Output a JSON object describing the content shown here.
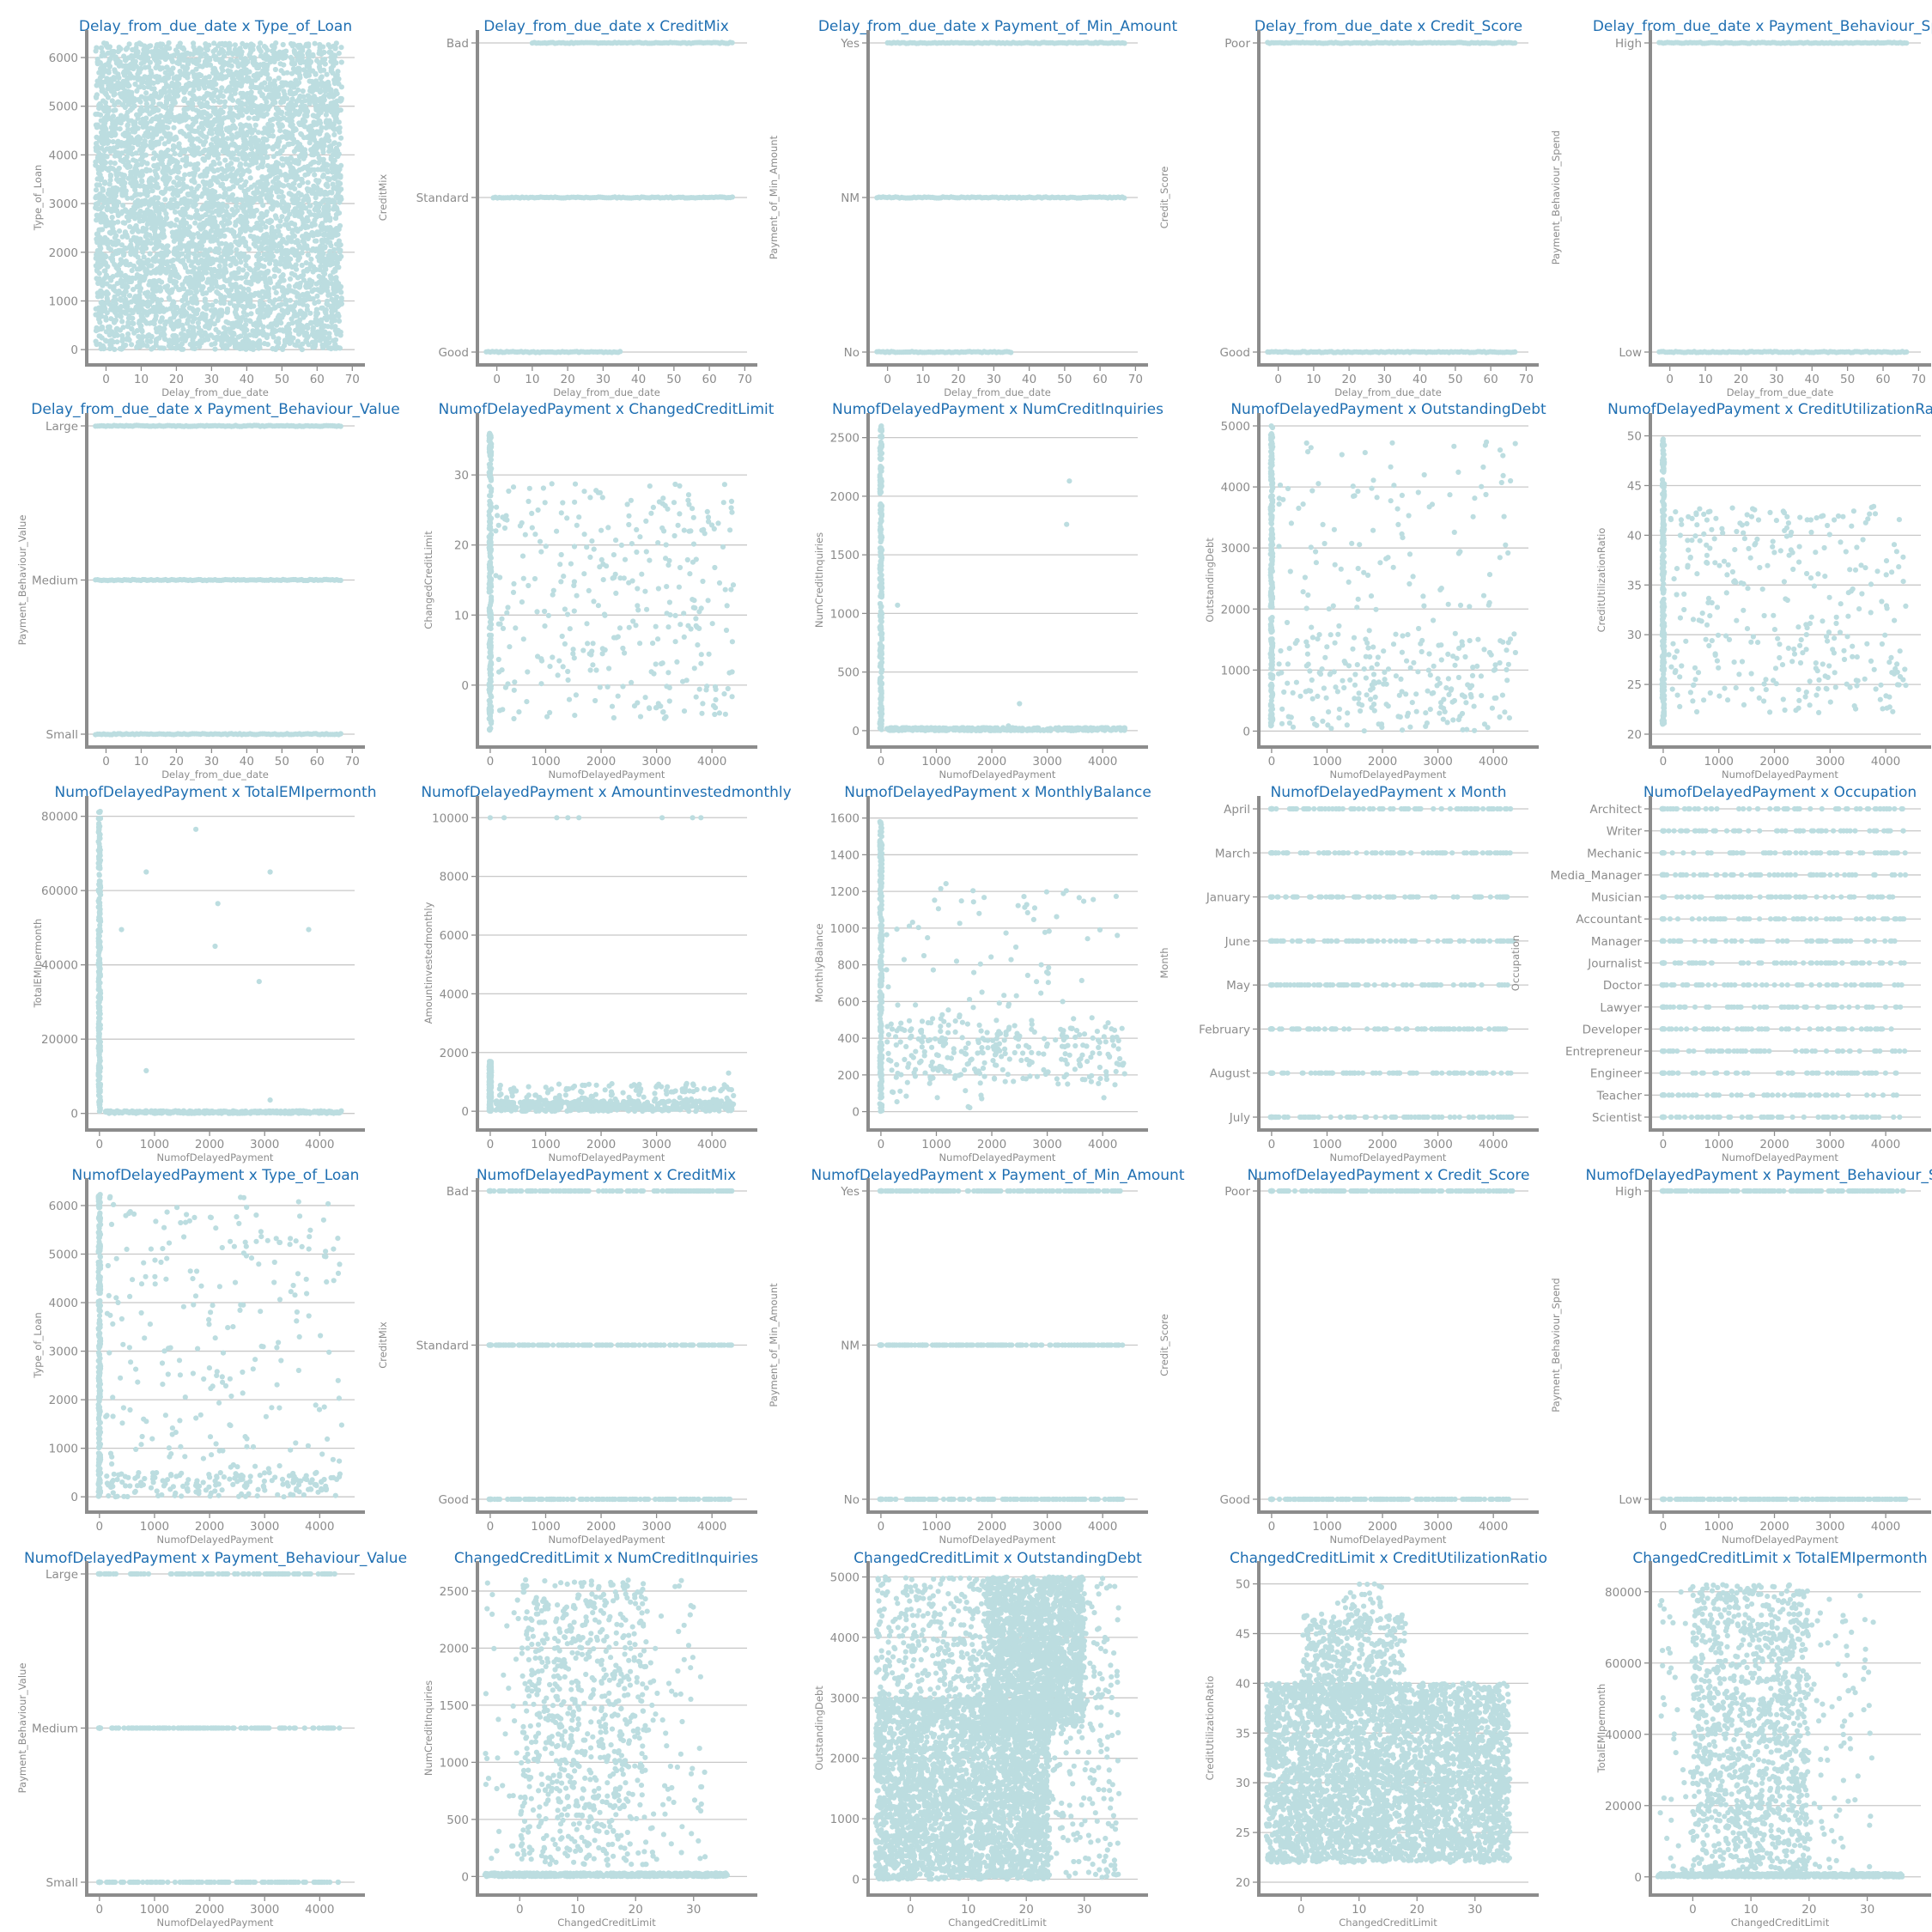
{
  "style": {
    "point_color": "#bcdde0",
    "title_color": "#1f6fb2",
    "axis_color": "#8c8c8c",
    "grid_color": "#c8c8c8"
  },
  "chart_data": [
    {
      "type": "scatter",
      "title": "Delay_from_due_date x Type_of_Loan",
      "xlabel": "Delay_from_due_date",
      "ylabel": "Type_of_Loan",
      "xlim": [
        -5,
        67
      ],
      "xticks": [
        0,
        10,
        20,
        30,
        40,
        50,
        60,
        70
      ],
      "ylim": [
        -50,
        6300
      ],
      "yticks": [
        0,
        1000,
        2000,
        3000,
        4000,
        5000,
        6000
      ],
      "cluster": [
        {
          "x0": -3,
          "x1": 67,
          "y0": 0,
          "y1": 6300,
          "n": 5200
        }
      ]
    },
    {
      "type": "scatter",
      "title": "Delay_from_due_date x CreditMix",
      "xlabel": "Delay_from_due_date",
      "ylabel": "CreditMix",
      "xlim": [
        -5,
        67
      ],
      "xticks": [
        0,
        10,
        20,
        30,
        40,
        50,
        60,
        70
      ],
      "categories_y": [
        "Good",
        "Standard",
        "Bad"
      ],
      "ranges": [
        [
          -3,
          35
        ],
        [
          -1,
          67
        ],
        [
          10,
          67
        ]
      ]
    },
    {
      "type": "scatter",
      "title": "Delay_from_due_date x Payment_of_Min_Amount",
      "xlabel": "Delay_from_due_date",
      "ylabel": "Payment_of_Min_Amount",
      "xlim": [
        -5,
        67
      ],
      "xticks": [
        0,
        10,
        20,
        30,
        40,
        50,
        60,
        70
      ],
      "categories_y": [
        "No",
        "NM",
        "Yes"
      ],
      "ranges": [
        [
          -3,
          35
        ],
        [
          -3,
          67
        ],
        [
          0,
          67
        ]
      ]
    },
    {
      "type": "scatter",
      "title": "Delay_from_due_date x Credit_Score",
      "xlabel": "Delay_from_due_date",
      "ylabel": "Credit_Score",
      "xlim": [
        -5,
        67
      ],
      "xticks": [
        0,
        10,
        20,
        30,
        40,
        50,
        60,
        70
      ],
      "categories_y": [
        "Good",
        "Poor"
      ],
      "ranges": [
        [
          -3,
          67
        ],
        [
          -3,
          67
        ]
      ]
    },
    {
      "type": "scatter",
      "title": "Delay_from_due_date x Payment_Behaviour_Spend",
      "xlabel": "Delay_from_due_date",
      "ylabel": "Payment_Behaviour_Spend",
      "xlim": [
        -5,
        67
      ],
      "xticks": [
        0,
        10,
        20,
        30,
        40,
        50,
        60,
        70
      ],
      "categories_y": [
        "Low",
        "High"
      ],
      "ranges": [
        [
          -3,
          67
        ],
        [
          -3,
          67
        ]
      ]
    },
    {
      "type": "scatter",
      "title": "Delay_from_due_date x Payment_Behaviour_Value",
      "xlabel": "Delay_from_due_date",
      "ylabel": "Payment_Behaviour_Value",
      "xlim": [
        -5,
        67
      ],
      "xticks": [
        0,
        10,
        20,
        30,
        40,
        50,
        60,
        70
      ],
      "categories_y": [
        "Small",
        "Medium",
        "Large"
      ],
      "ranges": [
        [
          -3,
          67
        ],
        [
          -3,
          67
        ],
        [
          -3,
          67
        ]
      ]
    },
    {
      "type": "scatter",
      "title": "NumofDelayedPayment x ChangedCreditLimit",
      "xlabel": "NumofDelayedPayment",
      "ylabel": "ChangedCreditLimit",
      "xlim": [
        -200,
        4400
      ],
      "xticks": [
        0,
        1000,
        2000,
        3000,
        4000
      ],
      "ylim": [
        -7,
        37
      ],
      "yticks": [
        0,
        10,
        20,
        30
      ],
      "band": [
        -20,
        20,
        -6.5,
        36,
        260
      ],
      "cluster": [
        {
          "x0": 100,
          "x1": 4400,
          "y0": -5,
          "y1": 29,
          "n": 330
        }
      ]
    },
    {
      "type": "scatter",
      "title": "NumofDelayedPayment x NumCreditInquiries",
      "xlabel": "NumofDelayedPayment",
      "ylabel": "NumCreditInquiries",
      "xlim": [
        -200,
        4400
      ],
      "xticks": [
        0,
        1000,
        2000,
        3000,
        4000
      ],
      "ylim": [
        -30,
        2600
      ],
      "yticks": [
        0,
        500,
        1000,
        1500,
        2000,
        2500
      ],
      "band": [
        -20,
        20,
        0,
        2600,
        260
      ],
      "cluster": [
        {
          "x0": 100,
          "x1": 4400,
          "y0": 0,
          "y1": 25,
          "n": 420
        }
      ],
      "points": [
        [
          3400,
          2130
        ],
        [
          3350,
          1760
        ],
        [
          300,
          1070
        ],
        [
          2500,
          230
        ],
        [
          2300,
          40
        ]
      ]
    },
    {
      "type": "scatter",
      "title": "NumofDelayedPayment x OutstandingDebt",
      "xlabel": "NumofDelayedPayment",
      "ylabel": "OutstandingDebt",
      "xlim": [
        -200,
        4400
      ],
      "xticks": [
        0,
        1000,
        2000,
        3000,
        4000
      ],
      "ylim": [
        -50,
        5000
      ],
      "yticks": [
        0,
        1000,
        2000,
        3000,
        4000,
        5000
      ],
      "band": [
        -20,
        20,
        0,
        5000,
        260
      ],
      "cluster": [
        {
          "x0": 100,
          "x1": 4400,
          "y0": 0,
          "y1": 1600,
          "n": 230
        },
        {
          "x0": 100,
          "x1": 4400,
          "y0": 1600,
          "y1": 4800,
          "n": 110
        }
      ]
    },
    {
      "type": "scatter",
      "title": "NumofDelayedPayment x CreditUtilizationRatio",
      "xlabel": "NumofDelayedPayment",
      "ylabel": "CreditUtilizationRatio",
      "xlim": [
        -200,
        4400
      ],
      "xticks": [
        0,
        1000,
        2000,
        3000,
        4000
      ],
      "ylim": [
        20,
        51
      ],
      "yticks": [
        20,
        25,
        30,
        35,
        40,
        45,
        50
      ],
      "band": [
        -20,
        20,
        21,
        50,
        260
      ],
      "cluster": [
        {
          "x0": 100,
          "x1": 4400,
          "y0": 22,
          "y1": 43,
          "n": 330
        }
      ]
    },
    {
      "type": "scatter",
      "title": "NumofDelayedPayment x TotalEMIpermonth",
      "xlabel": "NumofDelayedPayment",
      "ylabel": "TotalEMIpermonth",
      "xlim": [
        -200,
        4400
      ],
      "xticks": [
        0,
        1000,
        2000,
        3000,
        4000
      ],
      "ylim": [
        -1000,
        82000
      ],
      "yticks": [
        0,
        20000,
        40000,
        60000,
        80000
      ],
      "band": [
        -20,
        20,
        0,
        82000,
        260
      ],
      "cluster": [
        {
          "x0": 100,
          "x1": 4400,
          "y0": 0,
          "y1": 700,
          "n": 400
        }
      ],
      "points": [
        [
          1750,
          76500
        ],
        [
          850,
          65000
        ],
        [
          3100,
          65000
        ],
        [
          2150,
          56500
        ],
        [
          400,
          49500
        ],
        [
          3800,
          49500
        ],
        [
          2100,
          45000
        ],
        [
          2900,
          35500
        ],
        [
          850,
          11500
        ],
        [
          3100,
          3600
        ]
      ]
    },
    {
      "type": "scatter",
      "title": "NumofDelayedPayment x Amountinvestedmonthly",
      "xlabel": "NumofDelayedPayment",
      "ylabel": "Amountinvestedmonthly",
      "xlim": [
        -200,
        4400
      ],
      "xticks": [
        0,
        1000,
        2000,
        3000,
        4000
      ],
      "ylim": [
        -200,
        10300
      ],
      "yticks": [
        0,
        2000,
        4000,
        6000,
        8000,
        10000
      ],
      "band": [
        -20,
        20,
        0,
        1700,
        200
      ],
      "cluster": [
        {
          "x0": 100,
          "x1": 4400,
          "y0": 0,
          "y1": 350,
          "n": 420
        },
        {
          "x0": 100,
          "x1": 4400,
          "y0": 350,
          "y1": 950,
          "n": 110
        }
      ],
      "points": [
        [
          0,
          10000
        ],
        [
          250,
          10000
        ],
        [
          1200,
          10000
        ],
        [
          1400,
          10000
        ],
        [
          1600,
          10000
        ],
        [
          3100,
          10000
        ],
        [
          3650,
          10000
        ],
        [
          3800,
          10000
        ],
        [
          4300,
          1300
        ]
      ]
    },
    {
      "type": "scatter",
      "title": "NumofDelayedPayment x MonthlyBalance",
      "xlabel": "NumofDelayedPayment",
      "ylabel": "MonthlyBalance",
      "xlim": [
        -200,
        4400
      ],
      "xticks": [
        0,
        1000,
        2000,
        3000,
        4000
      ],
      "ylim": [
        -30,
        1650
      ],
      "yticks": [
        0,
        200,
        400,
        600,
        800,
        1000,
        1200,
        1400,
        1600
      ],
      "band": [
        -20,
        20,
        0,
        1600,
        260
      ],
      "cluster": [
        {
          "x0": 100,
          "x1": 4400,
          "y0": 150,
          "y1": 500,
          "n": 250
        },
        {
          "x0": 100,
          "x1": 4400,
          "y0": 20,
          "y1": 1250,
          "n": 120
        }
      ]
    },
    {
      "type": "scatter",
      "title": "NumofDelayedPayment x Month",
      "xlabel": "NumofDelayedPayment",
      "ylabel": "Month",
      "xlim": [
        -200,
        4400
      ],
      "xticks": [
        0,
        1000,
        2000,
        3000,
        4000
      ],
      "categories_y": [
        "July",
        "August",
        "February",
        "May",
        "June",
        "January",
        "March",
        "April"
      ],
      "sparse_rows": 75
    },
    {
      "type": "scatter",
      "title": "NumofDelayedPayment x Occupation",
      "xlabel": "NumofDelayedPayment",
      "ylabel": "Occupation",
      "xlim": [
        -200,
        4400
      ],
      "xticks": [
        0,
        1000,
        2000,
        3000,
        4000
      ],
      "categories_y": [
        "Scientist",
        "Teacher",
        "Engineer",
        "Entrepreneur",
        "Developer",
        "Lawyer",
        "Doctor",
        "Journalist",
        "Manager",
        "Accountant",
        "Musician",
        "Media_Manager",
        "Mechanic",
        "Writer",
        "Architect"
      ],
      "sparse_rows": 55
    },
    {
      "type": "scatter",
      "title": "NumofDelayedPayment x Type_of_Loan",
      "xlabel": "NumofDelayedPayment",
      "ylabel": "Type_of_Loan",
      "xlim": [
        -200,
        4400
      ],
      "xticks": [
        0,
        1000,
        2000,
        3000,
        4000
      ],
      "ylim": [
        -50,
        6300
      ],
      "yticks": [
        0,
        1000,
        2000,
        3000,
        4000,
        5000,
        6000
      ],
      "band": [
        -20,
        20,
        0,
        6250,
        260
      ],
      "cluster": [
        {
          "x0": 100,
          "x1": 4400,
          "y0": 0,
          "y1": 500,
          "n": 170
        },
        {
          "x0": 100,
          "x1": 4400,
          "y0": 500,
          "y1": 6200,
          "n": 230
        }
      ]
    },
    {
      "type": "scatter",
      "title": "NumofDelayedPayment x CreditMix",
      "xlabel": "NumofDelayedPayment",
      "ylabel": "CreditMix",
      "xlim": [
        -200,
        4400
      ],
      "xticks": [
        0,
        1000,
        2000,
        3000,
        4000
      ],
      "categories_y": [
        "Good",
        "Standard",
        "Bad"
      ],
      "sparse_rows": 140
    },
    {
      "type": "scatter",
      "title": "NumofDelayedPayment x Payment_of_Min_Amount",
      "xlabel": "NumofDelayedPayment",
      "ylabel": "Payment_of_Min_Amount",
      "xlim": [
        -200,
        4400
      ],
      "xticks": [
        0,
        1000,
        2000,
        3000,
        4000
      ],
      "categories_y": [
        "No",
        "NM",
        "Yes"
      ],
      "sparse_rows": 140
    },
    {
      "type": "scatter",
      "title": "NumofDelayedPayment x Credit_Score",
      "xlabel": "NumofDelayedPayment",
      "ylabel": "Credit_Score",
      "xlim": [
        -200,
        4400
      ],
      "xticks": [
        0,
        1000,
        2000,
        3000,
        4000
      ],
      "categories_y": [
        "Good",
        "Poor"
      ],
      "sparse_rows": 160
    },
    {
      "type": "scatter",
      "title": "NumofDelayedPayment x Payment_Behaviour_Spend",
      "xlabel": "NumofDelayedPayment",
      "ylabel": "Payment_Behaviour_Spend",
      "xlim": [
        -200,
        4400
      ],
      "xticks": [
        0,
        1000,
        2000,
        3000,
        4000
      ],
      "categories_y": [
        "Low",
        "High"
      ],
      "sparse_rows": 160
    },
    {
      "type": "scatter",
      "title": "NumofDelayedPayment x Payment_Behaviour_Value",
      "xlabel": "NumofDelayedPayment",
      "ylabel": "Payment_Behaviour_Value",
      "xlim": [
        -200,
        4400
      ],
      "xticks": [
        0,
        1000,
        2000,
        3000,
        4000
      ],
      "categories_y": [
        "Small",
        "Medium",
        "Large"
      ],
      "sparse_rows": 120
    },
    {
      "type": "scatter",
      "title": "ChangedCreditLimit x NumCreditInquiries",
      "xlabel": "ChangedCreditLimit",
      "ylabel": "NumCreditInquiries",
      "xlim": [
        -7,
        37
      ],
      "xticks": [
        0,
        10,
        20,
        30
      ],
      "ylim": [
        -50,
        2650
      ],
      "yticks": [
        0,
        500,
        1000,
        1500,
        2000,
        2500
      ],
      "cluster": [
        {
          "x0": -6,
          "x1": 36,
          "y0": 0,
          "y1": 30,
          "n": 700
        },
        {
          "x0": 0,
          "x1": 22,
          "y0": 100,
          "y1": 2600,
          "n": 650
        },
        {
          "x0": -6,
          "x1": 32,
          "y0": 100,
          "y1": 2600,
          "n": 220
        }
      ]
    },
    {
      "type": "scatter",
      "title": "ChangedCreditLimit x OutstandingDebt",
      "xlabel": "ChangedCreditLimit",
      "ylabel": "OutstandingDebt",
      "xlim": [
        -7,
        37
      ],
      "xticks": [
        0,
        10,
        20,
        30
      ],
      "ylim": [
        -50,
        5050
      ],
      "yticks": [
        0,
        1000,
        2000,
        3000,
        4000,
        5000
      ],
      "cluster": [
        {
          "x0": -6,
          "x1": 24,
          "y0": 0,
          "y1": 3000,
          "n": 3200
        },
        {
          "x0": 13,
          "x1": 30,
          "y0": 2500,
          "y1": 5000,
          "n": 1600
        },
        {
          "x0": -6,
          "x1": 30,
          "y0": 2800,
          "y1": 5000,
          "n": 700
        },
        {
          "x0": 20,
          "x1": 36,
          "y0": 0,
          "y1": 5000,
          "n": 300
        }
      ]
    },
    {
      "type": "scatter",
      "title": "ChangedCreditLimit x CreditUtilizationRatio",
      "xlabel": "ChangedCreditLimit",
      "ylabel": "CreditUtilizationRatio",
      "xlim": [
        -7,
        37
      ],
      "xticks": [
        0,
        10,
        20,
        30
      ],
      "ylim": [
        20,
        51
      ],
      "yticks": [
        20,
        25,
        30,
        35,
        40,
        45,
        50
      ],
      "cluster": [
        {
          "x0": -6,
          "x1": 36,
          "y0": 22,
          "y1": 40,
          "n": 3800
        },
        {
          "x0": 0,
          "x1": 18,
          "y0": 38,
          "y1": 47,
          "n": 450
        },
        {
          "x0": 5,
          "x1": 14,
          "y0": 45,
          "y1": 50,
          "n": 40
        }
      ]
    },
    {
      "type": "scatter",
      "title": "ChangedCreditLimit x TotalEMIpermonth",
      "xlabel": "ChangedCreditLimit",
      "ylabel": "TotalEMIpermonth",
      "xlim": [
        -7,
        37
      ],
      "xticks": [
        0,
        10,
        20,
        30
      ],
      "ylim": [
        -1500,
        85000
      ],
      "yticks": [
        0,
        20000,
        40000,
        60000,
        80000
      ],
      "cluster": [
        {
          "x0": -6,
          "x1": 36,
          "y0": 0,
          "y1": 900,
          "n": 700
        },
        {
          "x0": 0,
          "x1": 20,
          "y0": 1000,
          "y1": 82000,
          "n": 1100
        },
        {
          "x0": -6,
          "x1": 32,
          "y0": 1000,
          "y1": 82000,
          "n": 250
        }
      ]
    }
  ]
}
